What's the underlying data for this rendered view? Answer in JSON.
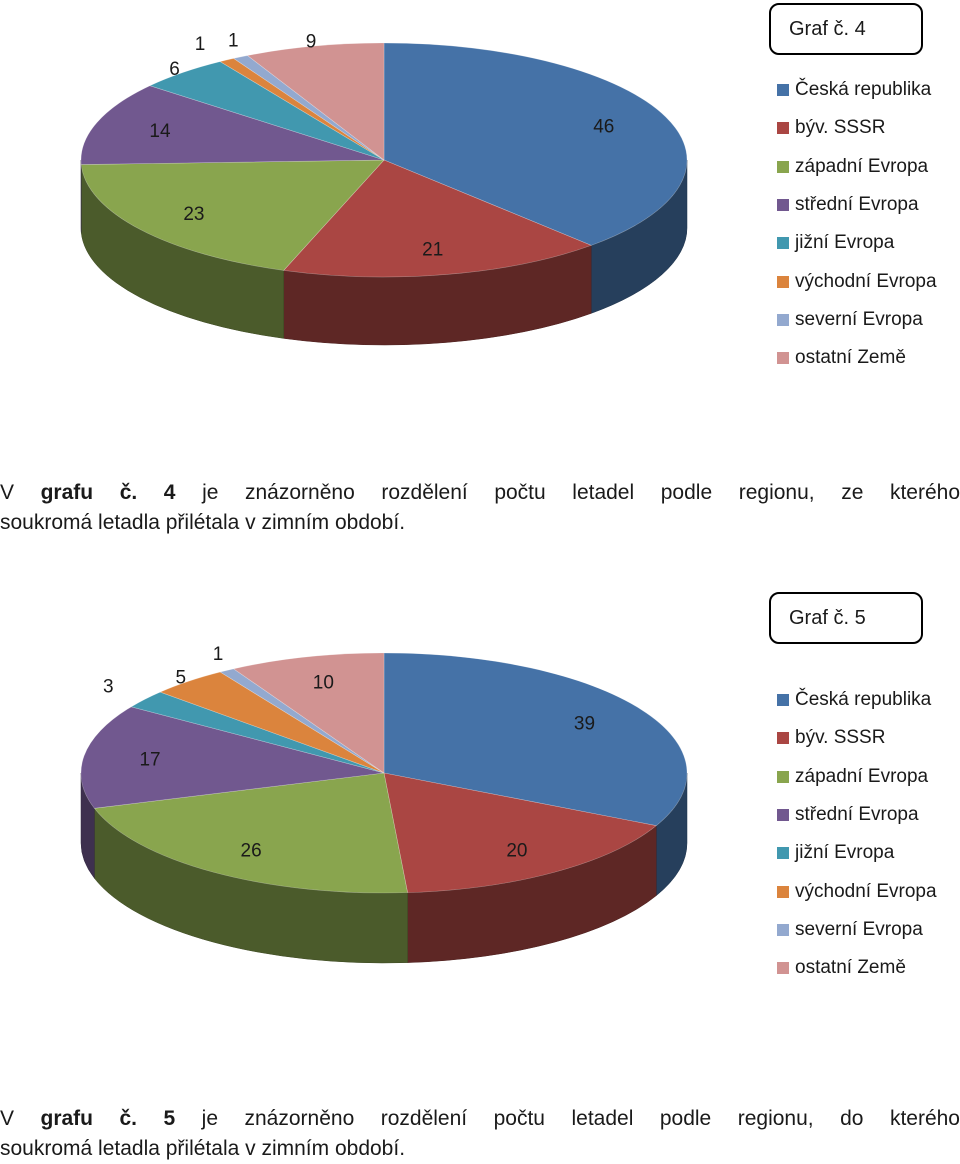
{
  "chart_data": [
    {
      "type": "pie",
      "box_label": "Graf č. 4",
      "categories": [
        "Česká republika",
        "býv. SSSR",
        "západní Evropa",
        "střední Evropa",
        "jižní Evropa",
        "východní Evropa",
        "severní Evropa",
        "ostatní Země"
      ],
      "values": [
        46,
        21,
        23,
        14,
        6,
        1,
        1,
        9
      ],
      "colors": [
        "#4572a7",
        "#aa4643",
        "#89a54e",
        "#71588f",
        "#4198af",
        "#db843d",
        "#93a9cf",
        "#d19392"
      ],
      "legend_position": "right"
    },
    {
      "type": "pie",
      "box_label": "Graf č. 5",
      "categories": [
        "Česká republika",
        "býv. SSSR",
        "západní Evropa",
        "střední Evropa",
        "jižní Evropa",
        "východní Evropa",
        "severní Evropa",
        "ostatní Země"
      ],
      "values": [
        39,
        20,
        26,
        17,
        3,
        5,
        1,
        10
      ],
      "colors": [
        "#4572a7",
        "#aa4643",
        "#89a54e",
        "#71588f",
        "#4198af",
        "#db843d",
        "#93a9cf",
        "#d19392"
      ],
      "legend_position": "right"
    }
  ],
  "captions": [
    {
      "prefix": "V ",
      "bold": "grafu č. 4",
      "line1_rest": " je znázorněno rozdělení počtu letadel podle regionu, ze kterého",
      "line2": "soukromá letadla přilétala v zimním období."
    },
    {
      "prefix": "V ",
      "bold": "grafu č. 5",
      "line1_rest": " je znázorněno rozdělení počtu letadel podle regionu, do kterého",
      "line2": "soukromá letadla přilétala v zimním období."
    }
  ]
}
